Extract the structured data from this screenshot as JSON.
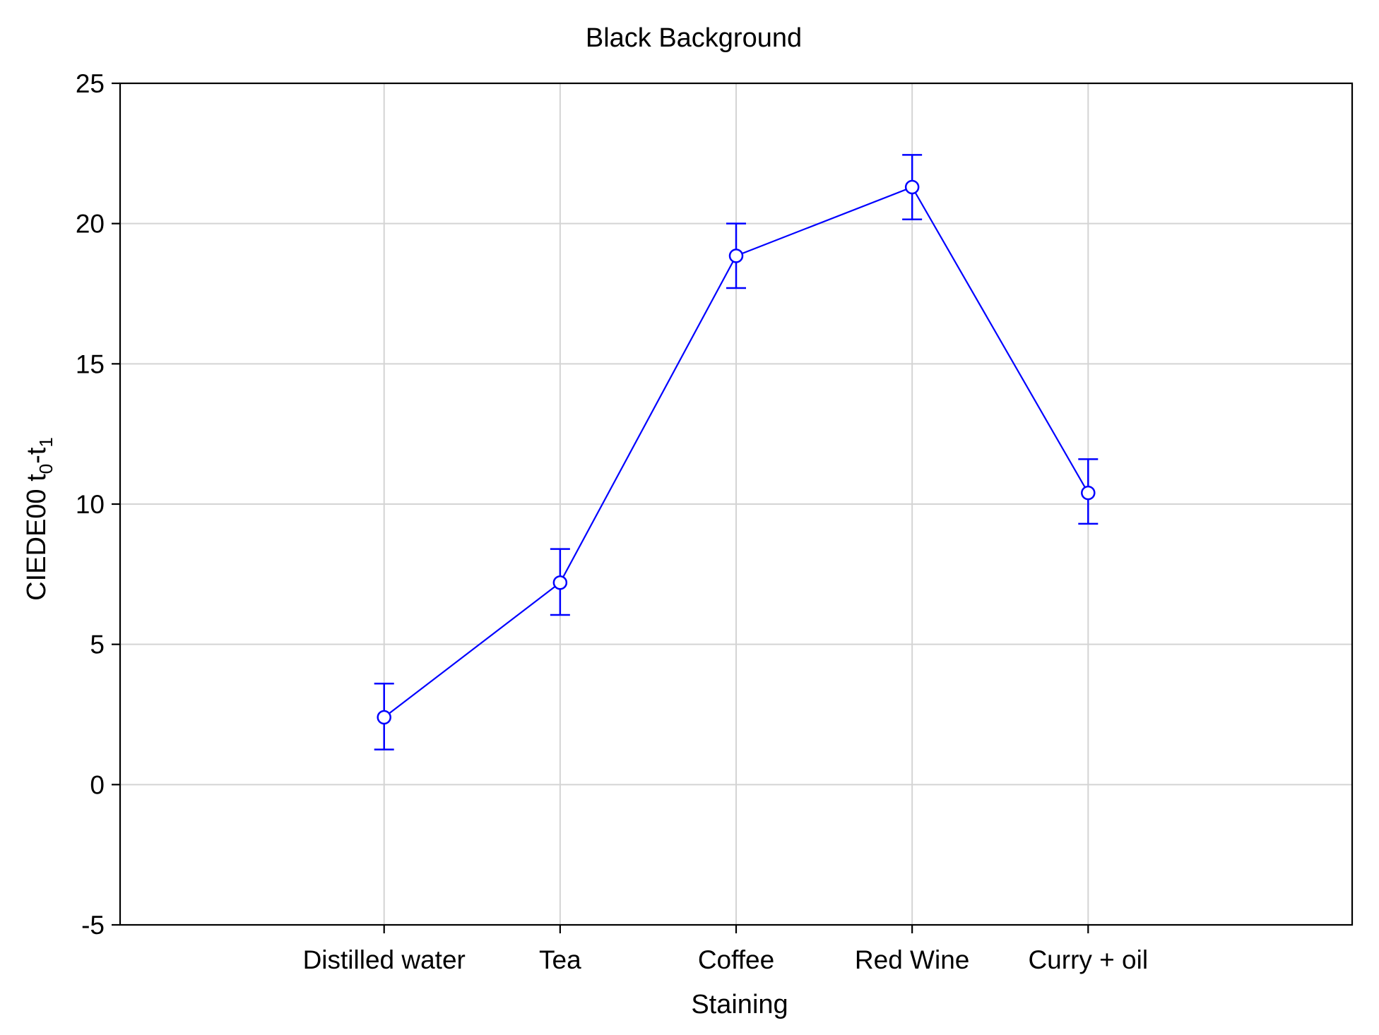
{
  "chart_data": {
    "type": "line",
    "title": "Black Background",
    "xlabel": "Staining",
    "ylabel": {
      "main": "CIEDE00 t",
      "sub1": "0",
      "dash": "-t",
      "sub2": "1"
    },
    "categories": [
      "Distilled water",
      "Tea",
      "Coffee",
      "Red Wine",
      "Curry + oil"
    ],
    "series": [
      {
        "values": [
          2.4,
          7.2,
          18.85,
          21.3,
          10.4
        ],
        "error_low": [
          1.25,
          6.05,
          17.7,
          20.15,
          9.3
        ],
        "error_high": [
          3.6,
          8.4,
          20.0,
          22.45,
          11.6
        ],
        "color": "#0000ff",
        "marker": "circle"
      }
    ],
    "ylim": [
      -5,
      25
    ],
    "yticks": [
      "-5",
      "0",
      "5",
      "10",
      "15",
      "20",
      "25"
    ],
    "ytick_values": [
      -5,
      0,
      5,
      10,
      15,
      20,
      25
    ],
    "grid": true,
    "grid_color": "#d4d4d4",
    "axis_color": "#000000"
  }
}
